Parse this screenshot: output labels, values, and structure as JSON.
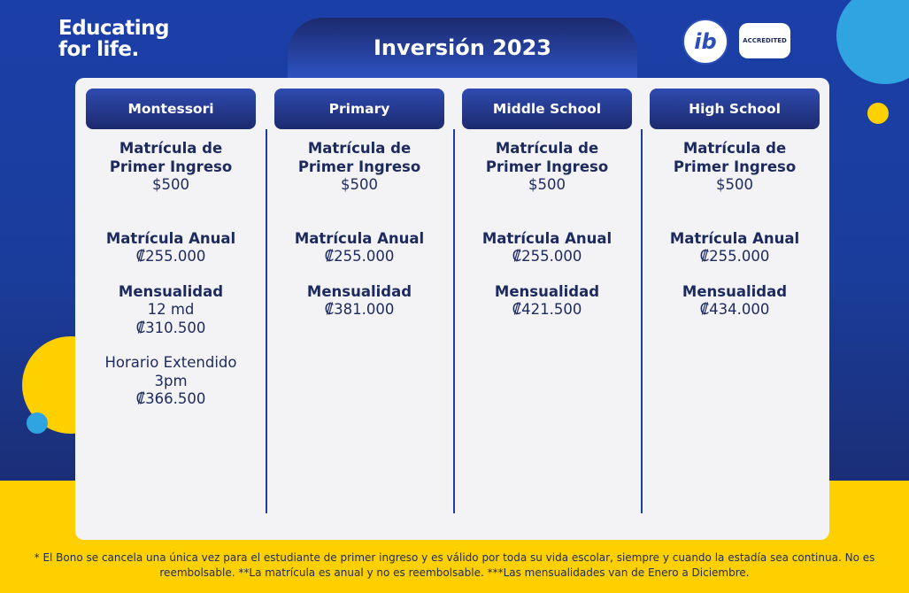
{
  "brand": {
    "line1": "Educating",
    "line2": "for life."
  },
  "title": "Inversión 2023",
  "logos": {
    "ib": "ib",
    "badge": "ACCREDITED"
  },
  "columns": [
    {
      "header": "Montessori",
      "blocks": [
        {
          "heading": "Matrícula de Primer Ingreso",
          "lines": [
            "$500"
          ]
        },
        {
          "heading": "Matrícula Anual",
          "lines": [
            "₡255.000"
          ]
        },
        {
          "heading": "Mensualidad",
          "lines": [
            "12 md",
            "₡310.500"
          ]
        },
        {
          "lines": [
            "Horario Extendido",
            "3pm",
            "₡366.500"
          ]
        }
      ]
    },
    {
      "header": "Primary",
      "blocks": [
        {
          "heading": "Matrícula de Primer Ingreso",
          "lines": [
            "$500"
          ]
        },
        {
          "heading": "Matrícula Anual",
          "lines": [
            "₡255.000"
          ]
        },
        {
          "heading": "Mensualidad",
          "lines": [
            "₡381.000"
          ]
        }
      ]
    },
    {
      "header": "Middle School",
      "blocks": [
        {
          "heading": "Matrícula de Primer Ingreso",
          "lines": [
            "$500"
          ]
        },
        {
          "heading": "Matrícula Anual",
          "lines": [
            "₡255.000"
          ]
        },
        {
          "heading": "Mensualidad",
          "lines": [
            "₡421.500"
          ]
        }
      ]
    },
    {
      "header": "High School",
      "blocks": [
        {
          "heading": "Matrícula de Primer Ingreso",
          "lines": [
            "$500"
          ]
        },
        {
          "heading": "Matrícula Anual",
          "lines": [
            "₡255.000"
          ]
        },
        {
          "heading": "Mensualidad",
          "lines": [
            "₡434.000"
          ]
        }
      ]
    }
  ],
  "footnote": "* El Bono se cancela una única vez para el estudiante de primer ingreso y es válido por toda su vida escolar, siempre y cuando la estadía sea continua. No es reembolsable. **La matrícula es anual y no es reembolsable. ***Las mensualidades van de Enero a Diciembre."
}
